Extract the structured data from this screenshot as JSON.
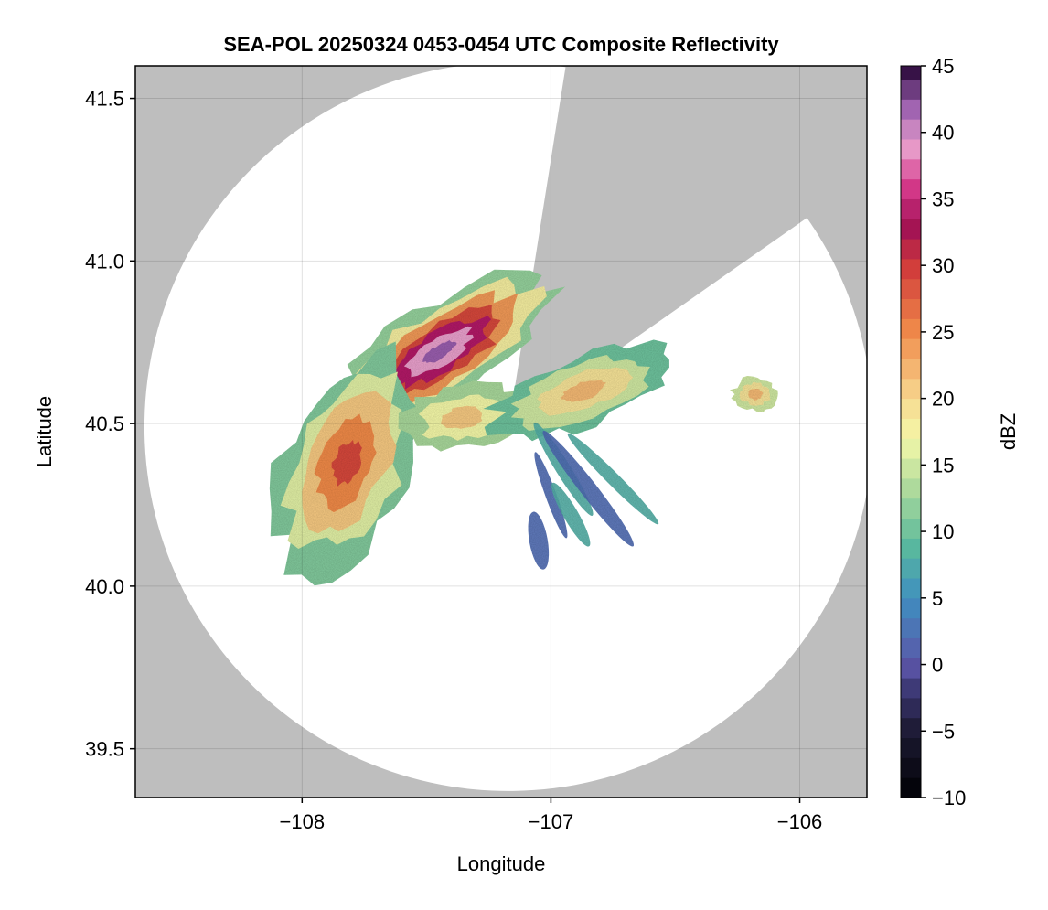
{
  "chart_data": {
    "type": "heatmap",
    "title": "SEA-POL 20250324 0453-0454 UTC Composite Reflectivity",
    "xlabel": "Longitude",
    "ylabel": "Latitude",
    "xlim": [
      -108.67,
      -105.73
    ],
    "ylim": [
      39.35,
      41.6
    ],
    "xticks": [
      -108,
      -107,
      -106
    ],
    "xtick_labels": [
      "−108",
      "−107",
      "−106"
    ],
    "yticks": [
      39.5,
      40.0,
      40.5,
      41.0,
      41.5
    ],
    "ytick_labels": [
      "39.5",
      "40.0",
      "40.5",
      "41.0",
      "41.5"
    ],
    "grid": true,
    "colorbar": {
      "label": "dBZ",
      "range": [
        -10,
        45
      ],
      "ticks": [
        -10,
        -5,
        0,
        5,
        10,
        15,
        20,
        25,
        30,
        35,
        40,
        45
      ],
      "tick_labels": [
        "−10",
        "−5",
        "0",
        "5",
        "10",
        "15",
        "20",
        "25",
        "30",
        "35",
        "40",
        "45"
      ],
      "colormap": "spectral-like",
      "stops": [
        {
          "v": -10,
          "c": "#000004"
        },
        {
          "v": -5,
          "c": "#1c1a33"
        },
        {
          "v": -2,
          "c": "#3a3670"
        },
        {
          "v": 0,
          "c": "#5b55a8"
        },
        {
          "v": 5,
          "c": "#3f8fc0"
        },
        {
          "v": 9,
          "c": "#5aba9d"
        },
        {
          "v": 13,
          "c": "#a9d89b"
        },
        {
          "v": 17,
          "c": "#f4f8a8"
        },
        {
          "v": 20,
          "c": "#f7d990"
        },
        {
          "v": 25,
          "c": "#f08a4a"
        },
        {
          "v": 30,
          "c": "#d03a3a"
        },
        {
          "v": 33,
          "c": "#a01055"
        },
        {
          "v": 36,
          "c": "#d63b8c"
        },
        {
          "v": 39,
          "c": "#e9a0cc"
        },
        {
          "v": 42,
          "c": "#9a5fae"
        },
        {
          "v": 45,
          "c": "#2e0b3e"
        }
      ]
    },
    "radar_center": {
      "lon": -107.17,
      "lat": 40.49
    },
    "coverage_radius_deg_lat": 1.12,
    "blocked_sectors": [
      {
        "azimuth_start_deg": 9,
        "azimuth_end_deg": 55
      }
    ],
    "background_color": "#bebebe",
    "coverage_color": "#ffffff",
    "echo_regions": [
      {
        "name": "northwest-core",
        "lon": -107.45,
        "lat": 40.74,
        "max_dbz": 42
      },
      {
        "name": "west-core",
        "lon": -107.85,
        "lat": 40.37,
        "max_dbz": 29
      },
      {
        "name": "east-echo",
        "lon": -106.85,
        "lat": 40.6,
        "max_dbz": 21
      },
      {
        "name": "far-east-cell",
        "lon": -106.2,
        "lat": 40.58,
        "max_dbz": 21
      },
      {
        "name": "south-streaks",
        "lon": -106.9,
        "lat": 40.3,
        "max_dbz": 5
      }
    ]
  }
}
